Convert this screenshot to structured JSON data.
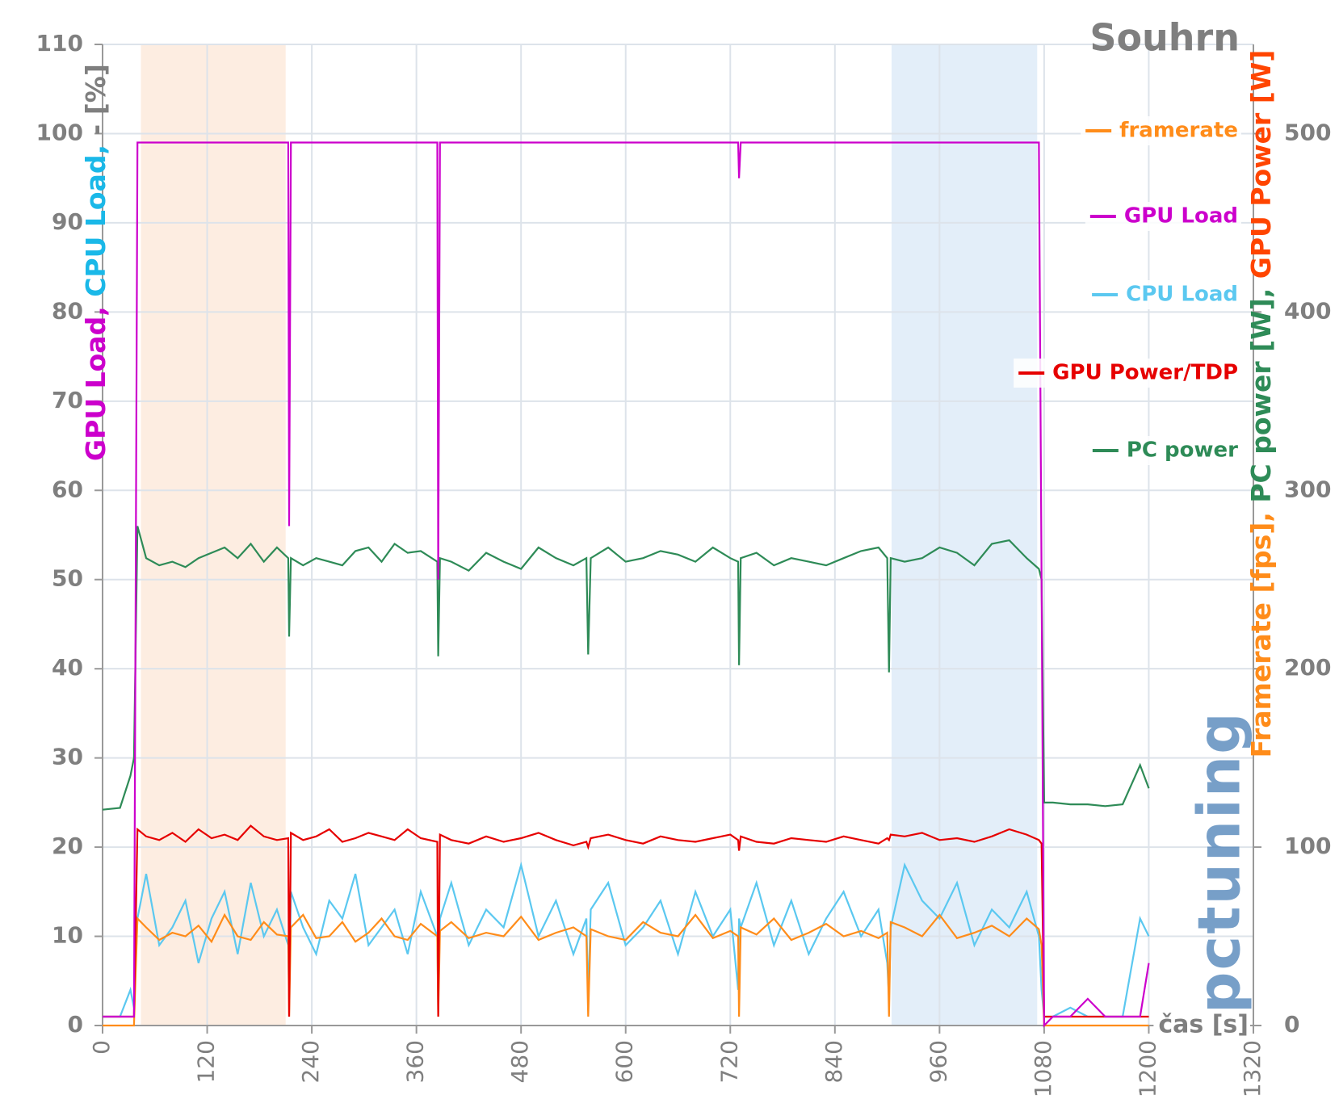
{
  "chart_data": {
    "type": "line",
    "title": "Souhrn",
    "x_label": "čas [s]",
    "y_label": [
      {
        "text": "GPU Load, ",
        "color": "#cc00cc"
      },
      {
        "text": "CPU Load, ",
        "color": "#1ab8e8"
      },
      {
        "text": "- [%]",
        "color": "#7f7f7f"
      }
    ],
    "y2_label": [
      {
        "text": "Framerate [fps], ",
        "color": "#ff8c1a"
      },
      {
        "text": "PC power [W], ",
        "color": "#2e8b57"
      },
      {
        "text": "GPU Power [W]",
        "color": "#ff4500"
      }
    ],
    "watermark": "pctuning",
    "xlim": [
      0,
      1320
    ],
    "xticks": [
      0,
      120,
      240,
      360,
      480,
      600,
      720,
      840,
      960,
      1080,
      1200,
      1320
    ],
    "ylim": [
      0,
      110
    ],
    "yticks": [
      0,
      10,
      20,
      30,
      40,
      50,
      60,
      70,
      80,
      90,
      100,
      110
    ],
    "y2lim": [
      0,
      550
    ],
    "y2ticks": [
      0,
      100,
      200,
      300,
      400,
      500
    ],
    "grid": true,
    "legend": "right",
    "highlights": [
      {
        "from": 44,
        "to": 210,
        "color": "#fde9d9"
      },
      {
        "from": 905,
        "to": 1072,
        "color": "#dceaf8"
      }
    ],
    "x": [
      0,
      20,
      32,
      36,
      40,
      50,
      65,
      80,
      95,
      110,
      125,
      140,
      155,
      170,
      185,
      200,
      213,
      214,
      216,
      230,
      245,
      260,
      275,
      290,
      305,
      320,
      335,
      350,
      365,
      384,
      385,
      387,
      400,
      420,
      440,
      460,
      480,
      500,
      520,
      540,
      555,
      557,
      560,
      580,
      600,
      620,
      640,
      660,
      680,
      700,
      720,
      729,
      730,
      732,
      750,
      770,
      790,
      810,
      830,
      850,
      870,
      890,
      900,
      902,
      904,
      920,
      940,
      960,
      980,
      1000,
      1020,
      1040,
      1060,
      1074,
      1077,
      1080,
      1090,
      1110,
      1130,
      1150,
      1170,
      1190,
      1200
    ],
    "series": [
      {
        "name": "framerate",
        "color": "#ff8c1a",
        "axis": "y2",
        "values": [
          0,
          0,
          0,
          0,
          60,
          55,
          48,
          52,
          50,
          56,
          47,
          62,
          50,
          48,
          58,
          51,
          50,
          5,
          55,
          62,
          49,
          50,
          58,
          47,
          52,
          60,
          50,
          48,
          57,
          50,
          5,
          53,
          58,
          49,
          52,
          50,
          61,
          48,
          52,
          55,
          50,
          5,
          54,
          50,
          48,
          58,
          52,
          50,
          62,
          49,
          53,
          50,
          5,
          55,
          51,
          60,
          48,
          52,
          57,
          50,
          53,
          49,
          52,
          5,
          58,
          55,
          50,
          62,
          49,
          52,
          56,
          50,
          60,
          54,
          45,
          0,
          0,
          0,
          0,
          0,
          0,
          0,
          0
        ]
      },
      {
        "name": "GPU Load",
        "color": "#cc00cc",
        "values": [
          1,
          1,
          1,
          1,
          99,
          99,
          99,
          99,
          99,
          99,
          99,
          99,
          99,
          99,
          99,
          99,
          99,
          56,
          99,
          99,
          99,
          99,
          99,
          99,
          99,
          99,
          99,
          99,
          99,
          99,
          50,
          99,
          99,
          99,
          99,
          99,
          99,
          99,
          99,
          99,
          99,
          99,
          99,
          99,
          99,
          99,
          99,
          99,
          99,
          99,
          99,
          99,
          95,
          99,
          99,
          99,
          99,
          99,
          99,
          99,
          99,
          99,
          99,
          99,
          99,
          99,
          99,
          99,
          99,
          99,
          99,
          99,
          99,
          99,
          50,
          0,
          1,
          1,
          3,
          1,
          1,
          1,
          7
        ]
      },
      {
        "name": "CPU Load",
        "color": "#5bc8f0",
        "values": [
          1,
          1,
          4,
          2,
          12,
          17,
          9,
          11,
          14,
          7,
          12,
          15,
          8,
          16,
          10,
          13,
          9,
          3,
          15,
          11,
          8,
          14,
          12,
          17,
          9,
          11,
          13,
          8,
          15,
          10,
          2,
          12,
          16,
          9,
          13,
          11,
          18,
          10,
          14,
          8,
          12,
          3,
          13,
          16,
          9,
          11,
          14,
          8,
          15,
          10,
          13,
          4,
          12,
          11,
          16,
          9,
          14,
          8,
          12,
          15,
          10,
          13,
          7,
          3,
          11,
          18,
          14,
          12,
          16,
          9,
          13,
          11,
          15,
          10,
          4,
          1,
          1,
          2,
          1,
          1,
          1,
          12,
          10
        ]
      },
      {
        "name": "GPU Power/TDP",
        "color": "#e60000",
        "axis": "y2",
        "values": [
          5,
          5,
          5,
          5,
          110,
          106,
          104,
          108,
          103,
          110,
          105,
          107,
          104,
          112,
          106,
          104,
          105,
          5,
          108,
          104,
          106,
          110,
          103,
          105,
          108,
          106,
          104,
          110,
          105,
          103,
          5,
          107,
          104,
          102,
          106,
          103,
          105,
          108,
          104,
          101,
          103,
          100,
          105,
          107,
          104,
          102,
          106,
          104,
          103,
          105,
          107,
          104,
          98,
          106,
          103,
          102,
          105,
          104,
          103,
          106,
          104,
          102,
          105,
          104,
          107,
          106,
          108,
          104,
          105,
          103,
          106,
          110,
          107,
          104,
          102,
          5,
          5,
          5,
          5,
          5,
          5,
          5,
          5
        ]
      },
      {
        "name": "PC power",
        "color": "#2e8b57",
        "axis": "y2",
        "values": [
          121,
          122,
          140,
          150,
          280,
          262,
          258,
          260,
          257,
          262,
          265,
          268,
          262,
          270,
          260,
          268,
          262,
          218,
          262,
          258,
          262,
          260,
          258,
          266,
          268,
          260,
          270,
          265,
          266,
          260,
          207,
          262,
          260,
          255,
          265,
          260,
          256,
          268,
          262,
          258,
          262,
          208,
          262,
          268,
          260,
          262,
          266,
          264,
          260,
          268,
          262,
          260,
          202,
          262,
          265,
          258,
          262,
          260,
          258,
          262,
          266,
          268,
          262,
          198,
          262,
          260,
          262,
          268,
          265,
          258,
          270,
          272,
          262,
          256,
          250,
          125,
          125,
          124,
          124,
          123,
          124,
          146,
          133
        ]
      }
    ]
  }
}
